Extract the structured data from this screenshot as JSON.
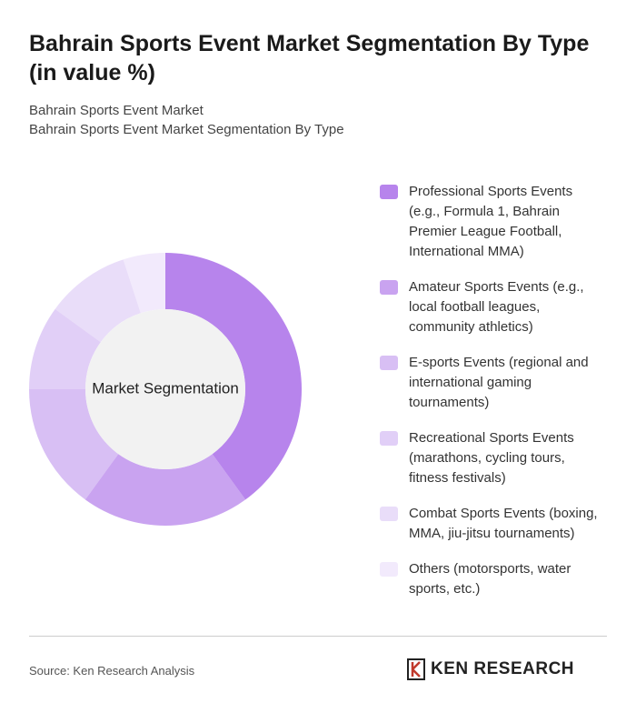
{
  "chart_data": {
    "type": "donut",
    "title": "Bahrain Sports Event Market Segmentation By Type (in value %)",
    "subtitle": [
      "Bahrain Sports Event Market",
      "Bahrain Sports Event Market Segmentation By Type"
    ],
    "center_label": "Market Segmentation",
    "categories": [
      "Professional Sports Events (e.g., Formula 1, Bahrain Premier League Football, International MMA)",
      "Amateur Sports Events (e.g., local football leagues, community athletics)",
      "E-sports Events (regional and international gaming tournaments)",
      "Recreational Sports Events (marathons, cycling tours, fitness festivals)",
      "Combat Sports Events (boxing, MMA, jiu-jitsu tournaments)",
      "Others (motorsports, water sports, etc.)"
    ],
    "values": [
      40,
      20,
      15,
      10,
      10,
      5
    ],
    "colors": [
      "#b784ec",
      "#c9a3f0",
      "#d8bff4",
      "#e1cff7",
      "#e9ddf9",
      "#f2eafc"
    ]
  },
  "footer": {
    "source": "Source: Ken Research Analysis",
    "logo": "KEN RESEARCH"
  }
}
